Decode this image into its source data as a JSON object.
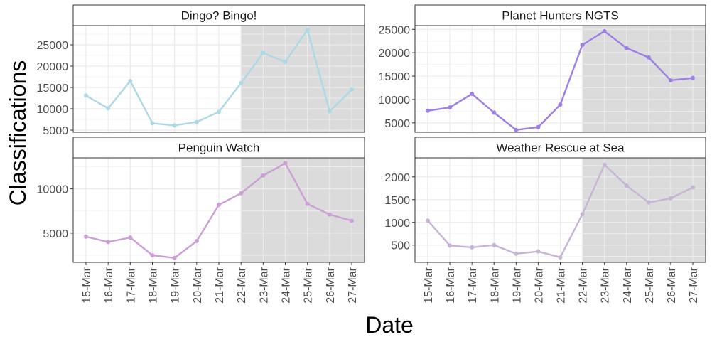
{
  "chart_data": {
    "type": "line",
    "title": "",
    "xlabel": "Date",
    "ylabel": "Classifications",
    "categories": [
      "15-Mar",
      "16-Mar",
      "17-Mar",
      "18-Mar",
      "19-Mar",
      "20-Mar",
      "21-Mar",
      "22-Mar",
      "23-Mar",
      "24-Mar",
      "25-Mar",
      "26-Mar",
      "27-Mar"
    ],
    "shaded_region": {
      "from": "22-Mar",
      "to": "27-Mar",
      "color": "#dbdbdb"
    },
    "grid": true,
    "legend": "none",
    "panels": [
      {
        "name": "Dingo? Bingo!",
        "color": "#add8e6",
        "ylim": [
          4500,
          29500
        ],
        "yticks": [
          5000,
          10000,
          15000,
          20000,
          25000
        ],
        "yticklabels": [
          "5000",
          "10000",
          "15000",
          "20000",
          "25000"
        ],
        "values": [
          13100,
          10100,
          16500,
          6600,
          6100,
          6900,
          9300,
          16000,
          23100,
          21000,
          28500,
          9400,
          14500
        ]
      },
      {
        "name": "Planet Hunters NGTS",
        "color": "#9d7fe6",
        "ylim": [
          3000,
          25800
        ],
        "yticks": [
          5000,
          10000,
          15000,
          20000,
          25000
        ],
        "yticklabels": [
          "5000",
          "10000",
          "15000",
          "20000",
          "25000"
        ],
        "values": [
          7600,
          8300,
          11200,
          7200,
          3500,
          4100,
          8900,
          21700,
          24600,
          21000,
          19000,
          14100,
          14600
        ]
      },
      {
        "name": "Penguin Watch",
        "color": "#cc9fd6",
        "ylim": [
          1700,
          13500
        ],
        "yticks": [
          5000,
          10000
        ],
        "yticklabels": [
          "5000",
          "10000"
        ],
        "values": [
          4600,
          4000,
          4500,
          2500,
          2200,
          4100,
          8200,
          9500,
          11500,
          12900,
          8300,
          7100,
          6400
        ]
      },
      {
        "name": "Weather Rescue at Sea",
        "color": "#c8b4d4",
        "ylim": [
          120,
          2420
        ],
        "yticks": [
          500,
          1000,
          1500,
          2000
        ],
        "yticklabels": [
          "500",
          "1000",
          "1500",
          "2000"
        ],
        "values": [
          1040,
          490,
          450,
          500,
          310,
          360,
          230,
          1180,
          2270,
          1810,
          1440,
          1530,
          1770
        ]
      }
    ]
  }
}
